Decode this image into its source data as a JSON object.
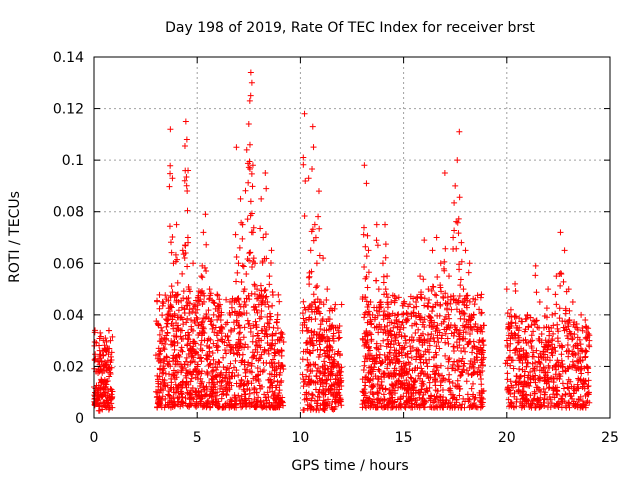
{
  "chart_data": {
    "type": "scatter",
    "title": "Day 198 of 2019, Rate Of TEC Index for receiver brst",
    "xlabel": "GPS time / hours",
    "ylabel": "ROTI / TECUs",
    "xlim": [
      0,
      25
    ],
    "ylim": [
      0,
      0.14
    ],
    "xticks": [
      0,
      5,
      10,
      15,
      20,
      25
    ],
    "xtick_labels": [
      "0",
      "5",
      "10",
      "15",
      "20",
      "25"
    ],
    "yticks": [
      0,
      0.02,
      0.04,
      0.06,
      0.08,
      0.1,
      0.12,
      0.14
    ],
    "ytick_labels": [
      "0",
      "0.02",
      "0.04",
      "0.06",
      "0.08",
      "0.1",
      "0.12",
      "0.14"
    ],
    "grid": true,
    "marker": "+",
    "color": "#ff0000",
    "series": [
      {
        "name": "ROTI",
        "x": [
          0.0,
          0.05,
          0.1,
          0.15,
          0.2,
          0.25,
          0.3,
          0.35,
          0.4,
          0.45,
          0.5,
          0.55,
          0.6,
          0.65,
          0.7,
          0.75,
          0.8,
          0.85,
          3.1,
          3.25,
          3.4,
          3.55,
          3.7,
          3.8,
          3.85,
          3.9,
          4.0,
          4.1,
          4.2,
          4.3,
          4.4,
          4.45,
          4.5,
          4.55,
          4.6,
          4.7,
          4.8,
          4.9,
          5.0,
          5.1,
          5.2,
          5.3,
          5.4,
          5.5,
          5.6,
          5.8,
          6.0,
          6.2,
          6.4,
          6.6,
          6.8,
          6.9,
          7.0,
          7.1,
          7.2,
          7.3,
          7.4,
          7.5,
          7.55,
          7.6,
          7.65,
          7.7,
          7.8,
          7.9,
          8.0,
          8.1,
          8.2,
          8.3,
          8.4,
          8.5,
          8.6,
          8.7,
          8.8,
          8.9,
          9.0,
          10.2,
          10.3,
          10.4,
          10.5,
          10.6,
          10.7,
          10.8,
          10.9,
          11.0,
          11.1,
          11.2,
          11.3,
          11.4,
          11.5,
          11.6,
          11.7,
          11.8,
          11.9,
          13.1,
          13.2,
          13.3,
          13.4,
          13.5,
          13.6,
          13.7,
          13.8,
          13.9,
          14.0,
          14.1,
          14.2,
          14.3,
          14.4,
          14.5,
          14.6,
          14.7,
          14.8,
          14.9,
          15.0,
          15.1,
          15.2,
          15.4,
          15.6,
          15.8,
          16.0,
          16.2,
          16.4,
          16.6,
          16.8,
          17.0,
          17.2,
          17.4,
          17.5,
          17.6,
          17.7,
          17.8,
          17.9,
          18.0,
          18.2,
          18.4,
          18.6,
          18.8,
          20.0,
          20.2,
          20.4,
          20.6,
          20.8,
          21.0,
          21.2,
          21.4,
          21.6,
          21.8,
          22.0,
          22.2,
          22.4,
          22.6,
          22.8,
          22.9,
          23.0,
          23.2,
          23.4,
          23.6,
          23.8,
          24.0
        ],
        "y": [
          0.012,
          0.034,
          0.018,
          0.01,
          0.022,
          0.008,
          0.033,
          0.015,
          0.026,
          0.009,
          0.02,
          0.031,
          0.013,
          0.027,
          0.006,
          0.019,
          0.03,
          0.011,
          0.015,
          0.035,
          0.022,
          0.04,
          0.112,
          0.093,
          0.06,
          0.028,
          0.075,
          0.045,
          0.034,
          0.065,
          0.092,
          0.115,
          0.108,
          0.07,
          0.05,
          0.038,
          0.06,
          0.025,
          0.042,
          0.018,
          0.055,
          0.072,
          0.079,
          0.03,
          0.05,
          0.04,
          0.03,
          0.035,
          0.025,
          0.04,
          0.045,
          0.105,
          0.06,
          0.085,
          0.075,
          0.05,
          0.104,
          0.114,
          0.123,
          0.134,
          0.13,
          0.098,
          0.06,
          0.05,
          0.03,
          0.085,
          0.07,
          0.095,
          0.045,
          0.055,
          0.065,
          0.035,
          0.025,
          0.04,
          0.03,
          0.118,
          0.035,
          0.093,
          0.065,
          0.113,
          0.075,
          0.06,
          0.088,
          0.045,
          0.062,
          0.025,
          0.05,
          0.03,
          0.02,
          0.035,
          0.015,
          0.025,
          0.018,
          0.098,
          0.091,
          0.065,
          0.045,
          0.04,
          0.035,
          0.075,
          0.05,
          0.045,
          0.06,
          0.075,
          0.055,
          0.04,
          0.045,
          0.035,
          0.03,
          0.04,
          0.025,
          0.02,
          0.035,
          0.03,
          0.025,
          0.03,
          0.045,
          0.055,
          0.069,
          0.05,
          0.065,
          0.07,
          0.06,
          0.095,
          0.055,
          0.07,
          0.09,
          0.1,
          0.111,
          0.068,
          0.05,
          0.065,
          0.06,
          0.04,
          0.035,
          0.03,
          0.05,
          0.042,
          0.052,
          0.035,
          0.03,
          0.04,
          0.036,
          0.059,
          0.045,
          0.035,
          0.05,
          0.04,
          0.055,
          0.072,
          0.065,
          0.049,
          0.05,
          0.045,
          0.035,
          0.04,
          0.038,
          0.03
        ]
      }
    ],
    "clusters": [
      {
        "x_range": [
          0.0,
          0.9
        ],
        "y_range": [
          0.004,
          0.034
        ],
        "density": 4
      },
      {
        "x_range": [
          3.0,
          9.2
        ],
        "y_range": [
          0.004,
          0.05
        ],
        "density": 7
      },
      {
        "x_range": [
          10.1,
          12.0
        ],
        "y_range": [
          0.003,
          0.045
        ],
        "density": 7
      },
      {
        "x_range": [
          13.0,
          18.9
        ],
        "y_range": [
          0.004,
          0.048
        ],
        "density": 7
      },
      {
        "x_range": [
          20.0,
          24.0
        ],
        "y_range": [
          0.004,
          0.04
        ],
        "density": 6
      }
    ]
  }
}
